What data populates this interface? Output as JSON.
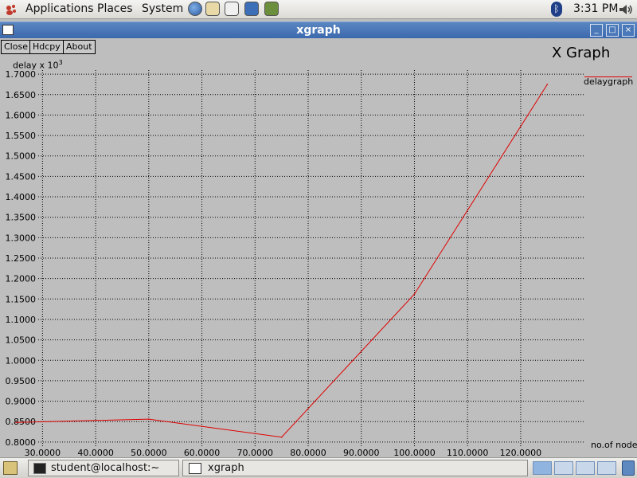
{
  "panel": {
    "menus": [
      "Applications",
      "Places",
      "System"
    ],
    "clock": "3:31 PM",
    "launchers": [
      "browser-icon",
      "mail-icon",
      "text-editor-icon",
      "desktop-icon",
      "education-icon"
    ]
  },
  "window": {
    "title": "xgraph",
    "buttons": {
      "close": "Close",
      "hdcpy": "Hdcpy",
      "about": "About"
    }
  },
  "graph": {
    "title": "X Graph",
    "ylabel_base": "delay x 10",
    "ylabel_exp": "3",
    "xlabel": "no.of nodes",
    "legend": "delaygraph",
    "series_color": "#e00000"
  },
  "chart_data": {
    "type": "line",
    "title": "X Graph",
    "xlabel": "no.of nodes",
    "ylabel": "delay x 10^3",
    "xlim": [
      22,
      132
    ],
    "ylim": [
      0.79,
      1.71
    ],
    "x_ticks": [
      "30.0000",
      "40.0000",
      "50.0000",
      "60.0000",
      "70.0000",
      "80.0000",
      "90.0000",
      "100.0000",
      "110.0000",
      "120.0000"
    ],
    "y_ticks": [
      "0.8000",
      "0.8500",
      "0.9000",
      "0.9500",
      "1.0000",
      "1.0500",
      "1.1000",
      "1.1500",
      "1.2000",
      "1.2500",
      "1.3000",
      "1.3500",
      "1.4000",
      "1.4500",
      "1.5000",
      "1.5500",
      "1.6000",
      "1.6500",
      "1.7000"
    ],
    "series": [
      {
        "name": "delaygraph",
        "x": [
          25,
          50,
          75,
          100,
          125
        ],
        "y": [
          0.848,
          0.856,
          0.812,
          1.162,
          1.675
        ]
      }
    ],
    "grid": true,
    "legend_position": "top-right"
  },
  "taskbar": {
    "tasks": [
      "student@localhost:~",
      "xgraph"
    ]
  }
}
